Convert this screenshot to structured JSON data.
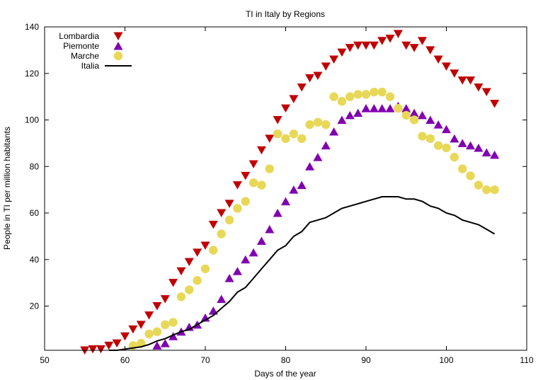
{
  "chart_data": {
    "type": "scatter",
    "title": "TI in Italy by Regions",
    "xlabel": "Days of the year",
    "ylabel": "People in TI per million habitants",
    "xlim": [
      50,
      110
    ],
    "ylim": [
      1,
      140
    ],
    "xticks": [
      50,
      60,
      70,
      80,
      90,
      100,
      110
    ],
    "yticks": [
      20,
      40,
      60,
      80,
      100,
      120,
      140
    ],
    "legend_position": "top-left",
    "grid": false,
    "series": [
      {
        "name": "Lombardia",
        "marker": "triangle-down",
        "color": "#c00000",
        "x": [
          55,
          56,
          57,
          58,
          59,
          60,
          61,
          62,
          63,
          64,
          65,
          66,
          67,
          68,
          69,
          70,
          71,
          72,
          73,
          74,
          75,
          76,
          77,
          78,
          79,
          80,
          81,
          82,
          83,
          84,
          85,
          86,
          87,
          88,
          89,
          90,
          91,
          92,
          93,
          94,
          95,
          96,
          97,
          98,
          99,
          100,
          101,
          102,
          103,
          104,
          105,
          106
        ],
        "values": [
          1,
          1.5,
          1.5,
          3,
          4,
          7,
          10,
          12,
          16,
          20,
          23,
          30,
          35,
          39,
          43,
          46,
          55,
          60,
          64,
          72,
          76,
          81,
          87,
          92,
          100,
          105,
          109,
          114,
          118,
          119,
          123,
          126,
          129,
          131,
          132,
          132,
          132,
          134,
          135,
          137,
          132,
          131,
          134,
          130,
          126,
          123,
          120,
          117,
          117,
          114,
          112,
          107
        ]
      },
      {
        "name": "Piemonte",
        "marker": "triangle-up",
        "color": "#8000b0",
        "x": [
          64,
          65,
          66,
          67,
          68,
          69,
          70,
          71,
          72,
          73,
          74,
          75,
          76,
          77,
          78,
          79,
          80,
          81,
          82,
          83,
          84,
          85,
          86,
          87,
          88,
          89,
          90,
          91,
          92,
          93,
          94,
          95,
          96,
          97,
          98,
          99,
          100,
          101,
          102,
          103,
          104,
          105,
          106
        ],
        "values": [
          3,
          4,
          7,
          9,
          11,
          12,
          15,
          18,
          23,
          32,
          35,
          40,
          43,
          48,
          53,
          60,
          65,
          70,
          72,
          80,
          84,
          89,
          95,
          100,
          102,
          103,
          105,
          105,
          105,
          105,
          106,
          105,
          103,
          102,
          100,
          98,
          96,
          92,
          90,
          89,
          88,
          86,
          85
        ]
      },
      {
        "name": "Marche",
        "marker": "circle",
        "color": "#e8d858",
        "x": [
          61,
          62,
          63,
          64,
          65,
          66,
          67,
          68,
          69,
          70,
          71,
          72,
          73,
          74,
          75,
          76,
          77,
          78,
          79,
          80,
          81,
          82,
          83,
          84,
          85,
          86,
          87,
          88,
          89,
          90,
          91,
          92,
          93,
          94,
          95,
          96,
          97,
          98,
          99,
          100,
          101,
          102,
          103,
          104,
          105,
          106
        ],
        "values": [
          3,
          4,
          8,
          9,
          12,
          13,
          24,
          27,
          31,
          36,
          44,
          51,
          57,
          62,
          65,
          73,
          72,
          79,
          94,
          92,
          94,
          92,
          98,
          99,
          98,
          110,
          108,
          110,
          111,
          111,
          112,
          112,
          110,
          105,
          102,
          100,
          93,
          92,
          89,
          88,
          84,
          79,
          76,
          72,
          70,
          70
        ]
      },
      {
        "name": "Italia",
        "marker": "line",
        "color": "#000000",
        "x": [
          58,
          59,
          60,
          61,
          62,
          63,
          64,
          65,
          66,
          67,
          68,
          69,
          70,
          71,
          72,
          73,
          74,
          75,
          76,
          77,
          78,
          79,
          80,
          81,
          82,
          83,
          84,
          85,
          86,
          87,
          88,
          89,
          90,
          91,
          92,
          93,
          94,
          95,
          96,
          97,
          98,
          99,
          100,
          101,
          102,
          103,
          104,
          105,
          106
        ],
        "values": [
          0.5,
          1,
          1.5,
          2,
          2.5,
          3.5,
          5,
          6,
          7.5,
          9,
          10,
          12,
          14,
          16,
          19,
          22,
          26,
          28,
          32,
          36,
          40,
          44,
          46,
          50,
          52,
          56,
          57,
          58,
          60,
          62,
          63,
          64,
          65,
          66,
          67,
          67,
          67,
          66,
          66,
          65,
          63,
          62,
          60,
          59,
          57,
          56,
          55,
          53,
          51
        ]
      }
    ]
  }
}
